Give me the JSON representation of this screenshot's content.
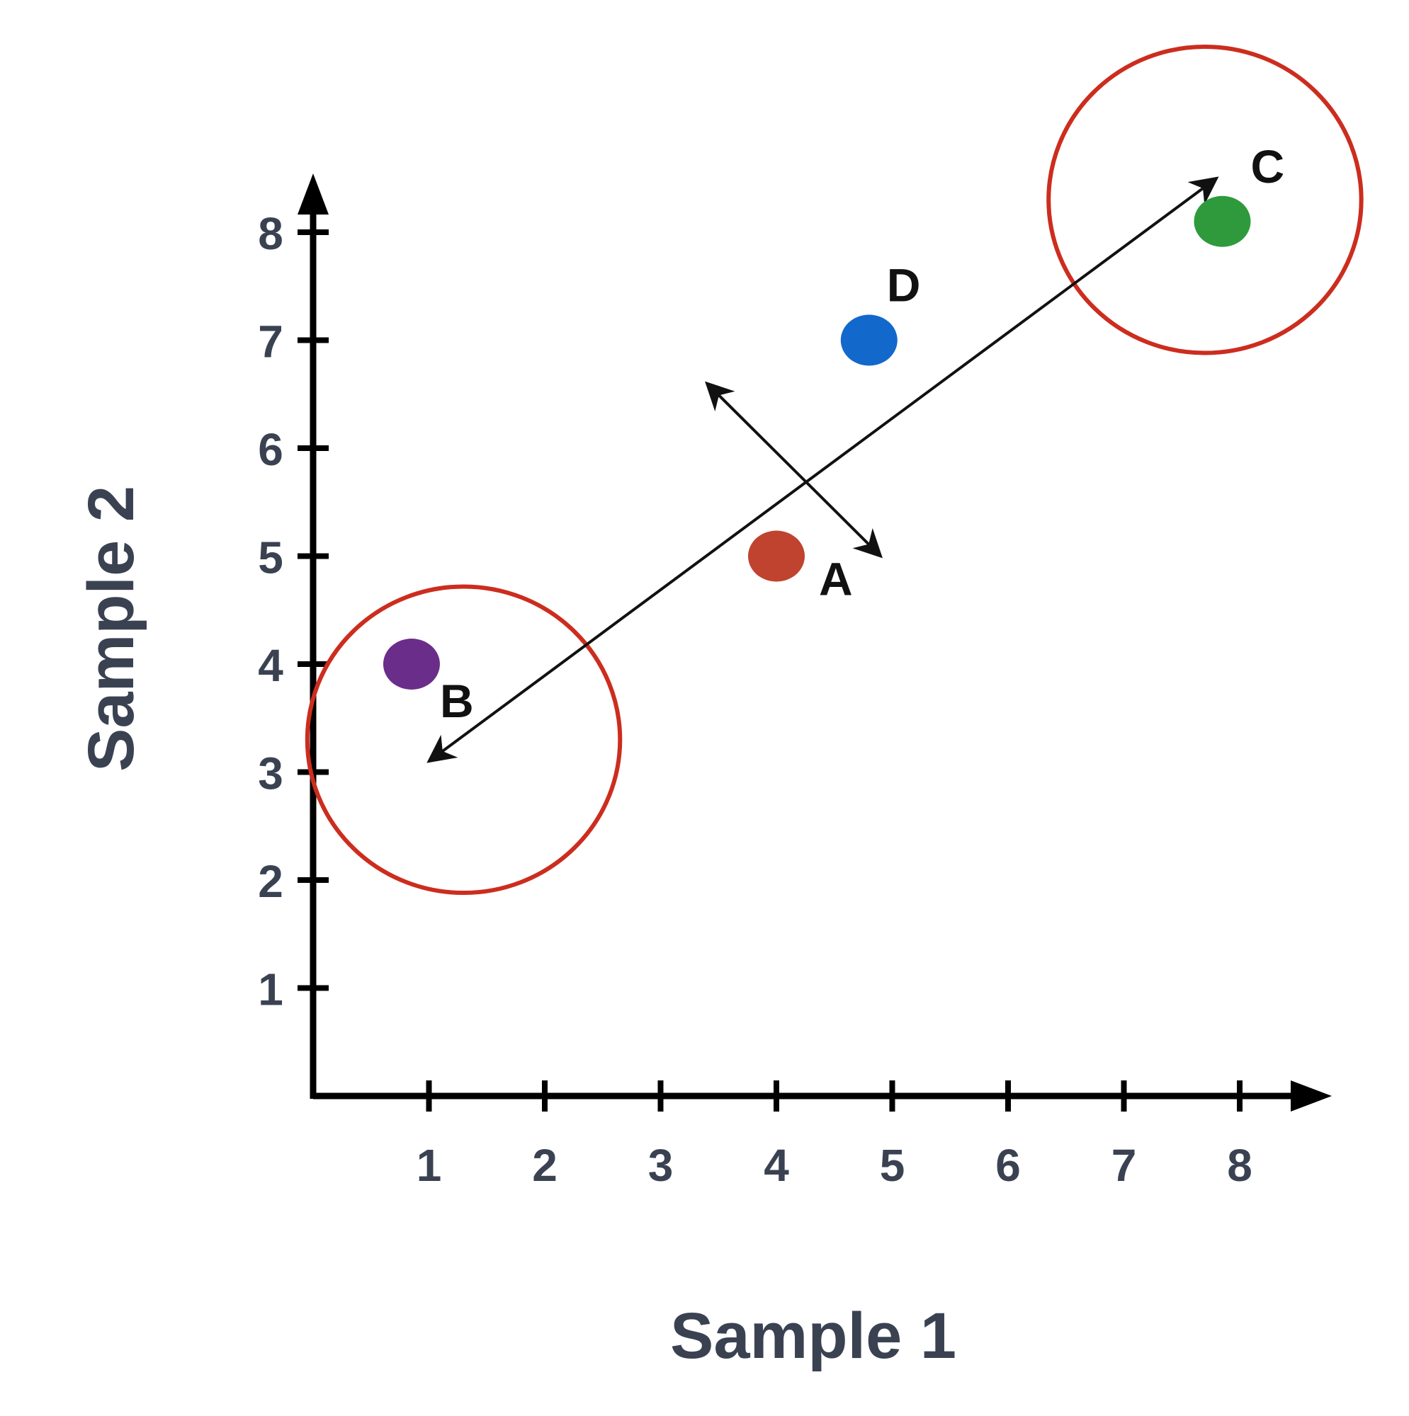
{
  "chart_data": {
    "type": "scatter",
    "xlabel": "Sample 1",
    "ylabel": "Sample 2",
    "xlim": [
      0,
      8.8
    ],
    "ylim": [
      0,
      8.6
    ],
    "x_ticks": [
      1,
      2,
      3,
      4,
      5,
      6,
      7,
      8
    ],
    "y_ticks": [
      1,
      2,
      3,
      4,
      5,
      6,
      7,
      8
    ],
    "grid": false,
    "points": [
      {
        "label": "A",
        "x": 4.0,
        "y": 5.0,
        "color": "#c0432f"
      },
      {
        "label": "B",
        "x": 0.85,
        "y": 4.0,
        "color": "#6b2d8a"
      },
      {
        "label": "C",
        "x": 7.85,
        "y": 8.1,
        "color": "#2e9a3c"
      },
      {
        "label": "D",
        "x": 4.8,
        "y": 7.0,
        "color": "#1368cc"
      }
    ],
    "annotations": {
      "principal_axis": {
        "from": [
          1.0,
          3.1
        ],
        "to": [
          7.8,
          8.5
        ],
        "color": "#111111"
      },
      "orthogonal_axis": {
        "from": [
          3.4,
          6.6
        ],
        "to": [
          4.9,
          5.0
        ],
        "color": "#111111"
      },
      "circles": [
        {
          "center": [
            1.3,
            3.3
          ],
          "radius_x": 1.35,
          "color": "#cc2d1e"
        },
        {
          "center": [
            7.7,
            8.3
          ],
          "radius_x": 1.35,
          "color": "#cc2d1e"
        }
      ]
    }
  }
}
